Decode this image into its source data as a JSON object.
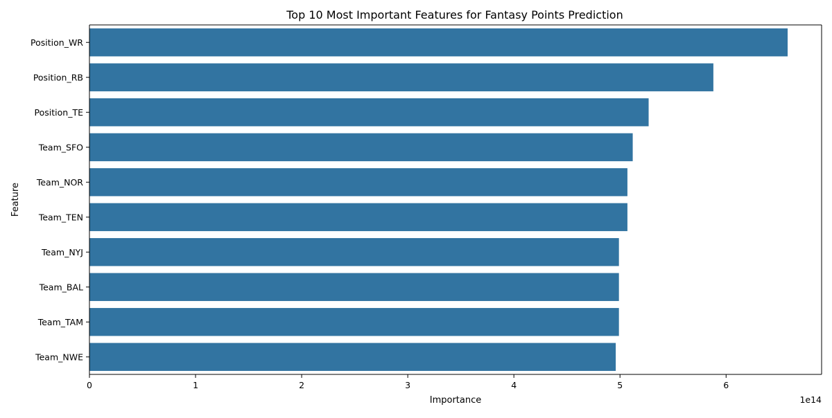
{
  "chart_data": {
    "type": "bar",
    "orientation": "horizontal",
    "title": "Top 10 Most Important Features for Fantasy Points Prediction",
    "xlabel": "Importance",
    "ylabel": "Feature",
    "x_scale_label": "1e14",
    "xlim": [
      0,
      6.9
    ],
    "x_ticks": [
      0,
      1,
      2,
      3,
      4,
      5,
      6
    ],
    "x_tick_labels": [
      "0",
      "1",
      "2",
      "3",
      "4",
      "5",
      "6"
    ],
    "grid": false,
    "bar_color": "#3274a1",
    "categories": [
      "Position_WR",
      "Position_RB",
      "Position_TE",
      "Team_SFO",
      "Team_NOR",
      "Team_TEN",
      "Team_NYJ",
      "Team_BAL",
      "Team_TAM",
      "Team_NWE"
    ],
    "values": [
      6.58,
      5.88,
      5.27,
      5.12,
      5.07,
      5.07,
      4.99,
      4.99,
      4.99,
      4.96
    ]
  }
}
